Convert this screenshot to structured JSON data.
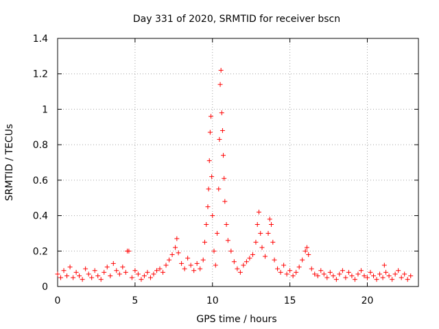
{
  "chart_data": {
    "type": "scatter",
    "title": "Day 331 of 2020, SRMTID for receiver bscn",
    "xlabel": "GPS time / hours",
    "ylabel": "SRMTID / TECUs",
    "xlim": [
      0,
      23.3
    ],
    "ylim": [
      0,
      1.4
    ],
    "x_ticks": [
      0,
      5,
      10,
      15,
      20
    ],
    "x_tick_labels": [
      "0",
      "5",
      "10",
      "15",
      "20"
    ],
    "y_ticks": [
      0,
      0.2,
      0.4,
      0.6,
      0.8,
      1,
      1.2,
      1.4
    ],
    "y_tick_labels": [
      "0",
      "0.2",
      "0.4",
      "0.6",
      "0.8",
      "1",
      "1.2",
      "1.4"
    ],
    "grid": true,
    "marker": "+",
    "marker_color": "#ff0000",
    "series": [
      {
        "name": "SRMTID",
        "points": [
          [
            0.0,
            0.07
          ],
          [
            0.2,
            0.05
          ],
          [
            0.4,
            0.09
          ],
          [
            0.6,
            0.06
          ],
          [
            0.8,
            0.11
          ],
          [
            1.0,
            0.05
          ],
          [
            1.2,
            0.08
          ],
          [
            1.4,
            0.06
          ],
          [
            1.6,
            0.04
          ],
          [
            1.8,
            0.1
          ],
          [
            2.0,
            0.07
          ],
          [
            2.2,
            0.05
          ],
          [
            2.4,
            0.09
          ],
          [
            2.6,
            0.06
          ],
          [
            2.8,
            0.04
          ],
          [
            3.0,
            0.08
          ],
          [
            3.2,
            0.11
          ],
          [
            3.4,
            0.06
          ],
          [
            3.6,
            0.13
          ],
          [
            3.8,
            0.09
          ],
          [
            4.0,
            0.07
          ],
          [
            4.2,
            0.11
          ],
          [
            4.4,
            0.08
          ],
          [
            4.5,
            0.2
          ],
          [
            4.6,
            0.2
          ],
          [
            4.8,
            0.05
          ],
          [
            5.0,
            0.09
          ],
          [
            5.2,
            0.07
          ],
          [
            5.4,
            0.04
          ],
          [
            5.6,
            0.06
          ],
          [
            5.8,
            0.08
          ],
          [
            6.0,
            0.05
          ],
          [
            6.2,
            0.07
          ],
          [
            6.4,
            0.09
          ],
          [
            6.6,
            0.1
          ],
          [
            6.8,
            0.08
          ],
          [
            7.0,
            0.12
          ],
          [
            7.2,
            0.15
          ],
          [
            7.4,
            0.18
          ],
          [
            7.6,
            0.22
          ],
          [
            7.7,
            0.27
          ],
          [
            7.8,
            0.19
          ],
          [
            8.0,
            0.13
          ],
          [
            8.2,
            0.1
          ],
          [
            8.4,
            0.16
          ],
          [
            8.6,
            0.12
          ],
          [
            8.8,
            0.09
          ],
          [
            9.0,
            0.13
          ],
          [
            9.2,
            0.1
          ],
          [
            9.4,
            0.15
          ],
          [
            9.5,
            0.25
          ],
          [
            9.6,
            0.35
          ],
          [
            9.7,
            0.45
          ],
          [
            9.75,
            0.55
          ],
          [
            9.8,
            0.71
          ],
          [
            9.85,
            0.87
          ],
          [
            9.9,
            0.96
          ],
          [
            9.95,
            0.62
          ],
          [
            10.0,
            0.4
          ],
          [
            10.1,
            0.2
          ],
          [
            10.2,
            0.12
          ],
          [
            10.3,
            0.3
          ],
          [
            10.4,
            0.55
          ],
          [
            10.45,
            0.83
          ],
          [
            10.5,
            1.14
          ],
          [
            10.55,
            1.22
          ],
          [
            10.6,
            0.98
          ],
          [
            10.65,
            0.88
          ],
          [
            10.7,
            0.74
          ],
          [
            10.75,
            0.61
          ],
          [
            10.8,
            0.48
          ],
          [
            10.9,
            0.35
          ],
          [
            11.0,
            0.26
          ],
          [
            11.2,
            0.2
          ],
          [
            11.4,
            0.14
          ],
          [
            11.6,
            0.1
          ],
          [
            11.8,
            0.08
          ],
          [
            12.0,
            0.12
          ],
          [
            12.2,
            0.14
          ],
          [
            12.4,
            0.16
          ],
          [
            12.6,
            0.18
          ],
          [
            12.8,
            0.25
          ],
          [
            12.9,
            0.35
          ],
          [
            13.0,
            0.42
          ],
          [
            13.1,
            0.3
          ],
          [
            13.2,
            0.22
          ],
          [
            13.4,
            0.17
          ],
          [
            13.6,
            0.3
          ],
          [
            13.7,
            0.38
          ],
          [
            13.8,
            0.35
          ],
          [
            13.9,
            0.25
          ],
          [
            14.0,
            0.15
          ],
          [
            14.2,
            0.1
          ],
          [
            14.4,
            0.08
          ],
          [
            14.6,
            0.12
          ],
          [
            14.8,
            0.07
          ],
          [
            15.0,
            0.09
          ],
          [
            15.2,
            0.06
          ],
          [
            15.4,
            0.08
          ],
          [
            15.6,
            0.11
          ],
          [
            15.8,
            0.15
          ],
          [
            16.0,
            0.2
          ],
          [
            16.1,
            0.22
          ],
          [
            16.2,
            0.18
          ],
          [
            16.4,
            0.1
          ],
          [
            16.6,
            0.07
          ],
          [
            16.8,
            0.06
          ],
          [
            17.0,
            0.09
          ],
          [
            17.2,
            0.07
          ],
          [
            17.4,
            0.05
          ],
          [
            17.6,
            0.08
          ],
          [
            17.8,
            0.06
          ],
          [
            18.0,
            0.04
          ],
          [
            18.2,
            0.07
          ],
          [
            18.4,
            0.09
          ],
          [
            18.6,
            0.05
          ],
          [
            18.8,
            0.08
          ],
          [
            19.0,
            0.06
          ],
          [
            19.2,
            0.04
          ],
          [
            19.4,
            0.07
          ],
          [
            19.6,
            0.09
          ],
          [
            19.8,
            0.06
          ],
          [
            20.0,
            0.05
          ],
          [
            20.2,
            0.08
          ],
          [
            20.4,
            0.06
          ],
          [
            20.6,
            0.04
          ],
          [
            20.8,
            0.07
          ],
          [
            21.0,
            0.05
          ],
          [
            21.1,
            0.12
          ],
          [
            21.2,
            0.08
          ],
          [
            21.4,
            0.06
          ],
          [
            21.6,
            0.04
          ],
          [
            21.8,
            0.07
          ],
          [
            22.0,
            0.09
          ],
          [
            22.2,
            0.05
          ],
          [
            22.4,
            0.07
          ],
          [
            22.6,
            0.04
          ],
          [
            22.8,
            0.06
          ]
        ]
      }
    ]
  }
}
